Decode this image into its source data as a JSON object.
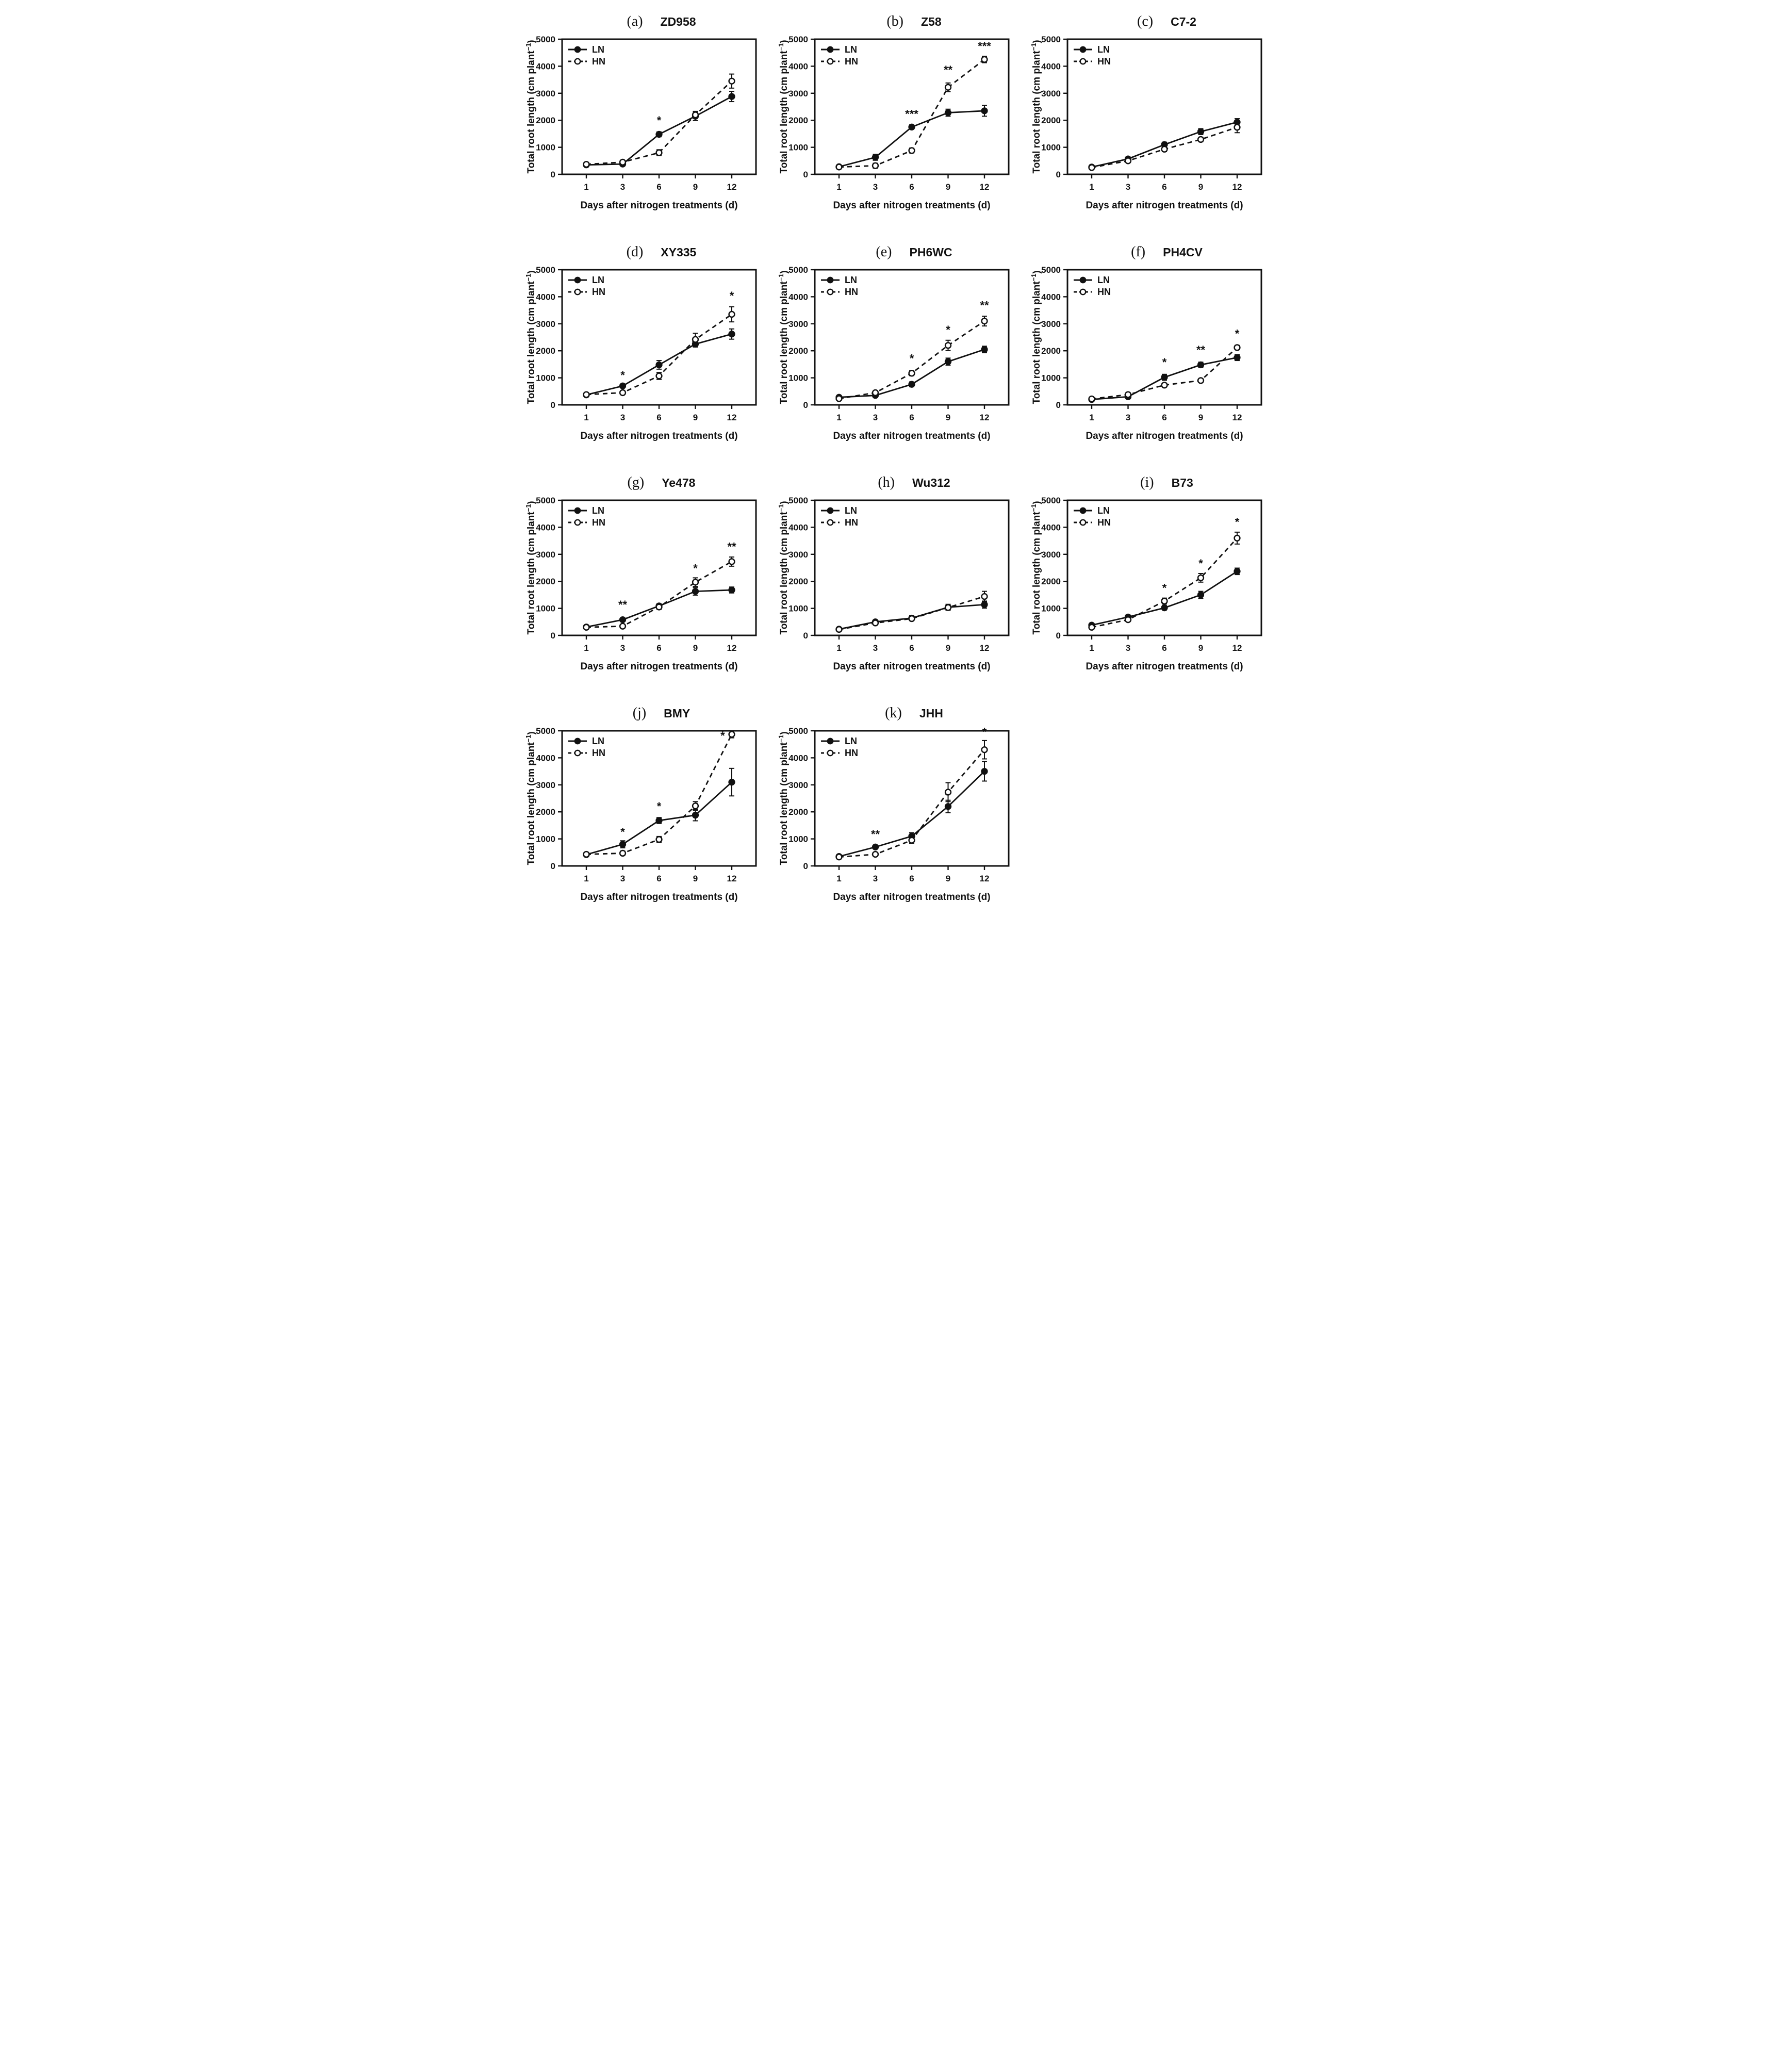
{
  "figure": {
    "axes": {
      "xlabel": "Days after nitrogen treatments (d)",
      "ylabel_pre": "Total root length (cm plant",
      "ylabel_sup": "−1",
      "ylabel_post": ")",
      "ylim": [
        0,
        5000
      ],
      "yticks": [
        0,
        1000,
        2000,
        3000,
        4000,
        5000
      ],
      "x_categories": [
        "1",
        "3",
        "6",
        "9",
        "12"
      ],
      "grid": false,
      "legend_position": "top-left-inside"
    },
    "colors": {
      "series": "#111111",
      "background": "#ffffff"
    }
  },
  "chart_data": [
    {
      "panel_label": "(a)",
      "title": "ZD958",
      "type": "line",
      "x": [
        1,
        3,
        6,
        9,
        12
      ],
      "series": [
        {
          "name": "LN",
          "style": "solid-filled",
          "values": [
            350,
            380,
            1480,
            2150,
            2880
          ],
          "errors": [
            60,
            60,
            90,
            160,
            190
          ]
        },
        {
          "name": "HN",
          "style": "dashed-open",
          "values": [
            370,
            450,
            800,
            2200,
            3450
          ],
          "errors": [
            60,
            60,
            110,
            130,
            260
          ]
        }
      ],
      "annotations": [
        {
          "xi": 2,
          "y": 1850,
          "text": "*"
        }
      ]
    },
    {
      "panel_label": "(b)",
      "title": "Z58",
      "type": "line",
      "x": [
        1,
        3,
        6,
        9,
        12
      ],
      "series": [
        {
          "name": "LN",
          "style": "solid-filled",
          "values": [
            280,
            630,
            1750,
            2280,
            2350
          ],
          "errors": [
            60,
            110,
            80,
            130,
            200
          ]
        },
        {
          "name": "HN",
          "style": "dashed-open",
          "values": [
            270,
            320,
            880,
            3220,
            4250
          ],
          "errors": [
            50,
            90,
            90,
            160,
            120
          ]
        }
      ],
      "annotations": [
        {
          "xi": 2,
          "y": 2090,
          "text": "***"
        },
        {
          "xi": 3,
          "y": 3720,
          "text": "**"
        },
        {
          "xi": 4,
          "y": 4600,
          "text": "***"
        }
      ]
    },
    {
      "panel_label": "(c)",
      "title": "C7-2",
      "type": "line",
      "x": [
        1,
        3,
        6,
        9,
        12
      ],
      "series": [
        {
          "name": "LN",
          "style": "solid-filled",
          "values": [
            270,
            570,
            1100,
            1580,
            1930
          ],
          "errors": [
            70,
            60,
            90,
            110,
            130
          ]
        },
        {
          "name": "HN",
          "style": "dashed-open",
          "values": [
            250,
            500,
            930,
            1290,
            1740
          ],
          "errors": [
            50,
            60,
            90,
            80,
            200
          ]
        }
      ],
      "annotations": []
    },
    {
      "panel_label": "(d)",
      "title": "XY335",
      "type": "line",
      "x": [
        1,
        3,
        6,
        9,
        12
      ],
      "series": [
        {
          "name": "LN",
          "style": "solid-filled",
          "values": [
            370,
            700,
            1480,
            2250,
            2620
          ],
          "errors": [
            60,
            60,
            160,
            110,
            190
          ]
        },
        {
          "name": "HN",
          "style": "dashed-open",
          "values": [
            380,
            450,
            1070,
            2420,
            3350
          ],
          "errors": [
            50,
            60,
            130,
            230,
            280
          ]
        }
      ],
      "annotations": [
        {
          "xi": 1,
          "y": 950,
          "text": "*"
        },
        {
          "xi": 4,
          "y": 3890,
          "text": "*"
        }
      ]
    },
    {
      "panel_label": "(e)",
      "title": "PH6WC",
      "type": "line",
      "x": [
        1,
        3,
        6,
        9,
        12
      ],
      "series": [
        {
          "name": "LN",
          "style": "solid-filled",
          "values": [
            280,
            350,
            760,
            1600,
            2050
          ],
          "errors": [
            60,
            60,
            90,
            130,
            120
          ]
        },
        {
          "name": "HN",
          "style": "dashed-open",
          "values": [
            230,
            450,
            1170,
            2200,
            3100
          ],
          "errors": [
            50,
            60,
            90,
            190,
            180
          ]
        }
      ],
      "annotations": [
        {
          "xi": 2,
          "y": 1570,
          "text": "*"
        },
        {
          "xi": 3,
          "y": 2630,
          "text": "*"
        },
        {
          "xi": 4,
          "y": 3540,
          "text": "**"
        }
      ]
    },
    {
      "panel_label": "(f)",
      "title": "PH4CV",
      "type": "line",
      "x": [
        1,
        3,
        6,
        9,
        12
      ],
      "series": [
        {
          "name": "LN",
          "style": "solid-filled",
          "values": [
            200,
            300,
            1020,
            1480,
            1750
          ],
          "errors": [
            40,
            60,
            110,
            100,
            110
          ]
        },
        {
          "name": "HN",
          "style": "dashed-open",
          "values": [
            220,
            380,
            730,
            900,
            2120
          ],
          "errors": [
            40,
            50,
            60,
            60,
            80
          ]
        }
      ],
      "annotations": [
        {
          "xi": 2,
          "y": 1430,
          "text": "*"
        },
        {
          "xi": 3,
          "y": 1890,
          "text": "**"
        },
        {
          "xi": 4,
          "y": 2490,
          "text": "*"
        }
      ]
    },
    {
      "panel_label": "(g)",
      "title": "Ye478",
      "type": "line",
      "x": [
        1,
        3,
        6,
        9,
        12
      ],
      "series": [
        {
          "name": "LN",
          "style": "solid-filled",
          "values": [
            310,
            580,
            1090,
            1630,
            1680
          ],
          "errors": [
            50,
            60,
            80,
            140,
            110
          ]
        },
        {
          "name": "HN",
          "style": "dashed-open",
          "values": [
            300,
            340,
            1050,
            1970,
            2730
          ],
          "errors": [
            50,
            60,
            90,
            160,
            170
          ]
        }
      ],
      "annotations": [
        {
          "xi": 1,
          "y": 990,
          "text": "**"
        },
        {
          "xi": 3,
          "y": 2340,
          "text": "*"
        },
        {
          "xi": 4,
          "y": 3140,
          "text": "**"
        }
      ]
    },
    {
      "panel_label": "(h)",
      "title": "Wu312",
      "type": "line",
      "x": [
        1,
        3,
        6,
        9,
        12
      ],
      "series": [
        {
          "name": "LN",
          "style": "solid-filled",
          "values": [
            230,
            500,
            640,
            1040,
            1140
          ],
          "errors": [
            60,
            60,
            90,
            110,
            130
          ]
        },
        {
          "name": "HN",
          "style": "dashed-open",
          "values": [
            220,
            460,
            620,
            1030,
            1440
          ],
          "errors": [
            50,
            60,
            70,
            80,
            190
          ]
        }
      ],
      "annotations": []
    },
    {
      "panel_label": "(i)",
      "title": "B73",
      "type": "line",
      "x": [
        1,
        3,
        6,
        9,
        12
      ],
      "series": [
        {
          "name": "LN",
          "style": "solid-filled",
          "values": [
            380,
            680,
            1020,
            1500,
            2370
          ],
          "errors": [
            70,
            70,
            80,
            130,
            120
          ]
        },
        {
          "name": "HN",
          "style": "dashed-open",
          "values": [
            300,
            580,
            1270,
            2130,
            3600
          ],
          "errors": [
            60,
            60,
            110,
            160,
            220
          ]
        }
      ],
      "annotations": [
        {
          "xi": 2,
          "y": 1610,
          "text": "*"
        },
        {
          "xi": 3,
          "y": 2520,
          "text": "*"
        },
        {
          "xi": 4,
          "y": 4060,
          "text": "*"
        }
      ]
    },
    {
      "panel_label": "(j)",
      "title": "BMY",
      "type": "line",
      "x": [
        1,
        3,
        6,
        9,
        12
      ],
      "series": [
        {
          "name": "LN",
          "style": "solid-filled",
          "values": [
            420,
            800,
            1680,
            1880,
            3100
          ],
          "errors": [
            60,
            130,
            110,
            210,
            510
          ]
        },
        {
          "name": "HN",
          "style": "dashed-open",
          "values": [
            430,
            470,
            980,
            2220,
            4870
          ],
          "errors": [
            60,
            80,
            110,
            160,
            130
          ]
        }
      ],
      "annotations": [
        {
          "xi": 1,
          "y": 1120,
          "text": "*"
        },
        {
          "xi": 2,
          "y": 2060,
          "text": "*"
        },
        {
          "xi": 3.75,
          "y": 4680,
          "text": "*"
        }
      ]
    },
    {
      "panel_label": "(k)",
      "title": "JHH",
      "type": "line",
      "x": [
        1,
        3,
        6,
        9,
        12
      ],
      "series": [
        {
          "name": "LN",
          "style": "solid-filled",
          "values": [
            350,
            700,
            1100,
            2200,
            3500
          ],
          "errors": [
            60,
            60,
            130,
            230,
            360
          ]
        },
        {
          "name": "HN",
          "style": "dashed-open",
          "values": [
            330,
            430,
            950,
            2730,
            4300
          ],
          "errors": [
            50,
            60,
            110,
            350,
            340
          ]
        }
      ],
      "annotations": [
        {
          "xi": 1,
          "y": 1030,
          "text": "**"
        },
        {
          "xi": 4,
          "y": 4820,
          "text": "*"
        }
      ]
    }
  ]
}
